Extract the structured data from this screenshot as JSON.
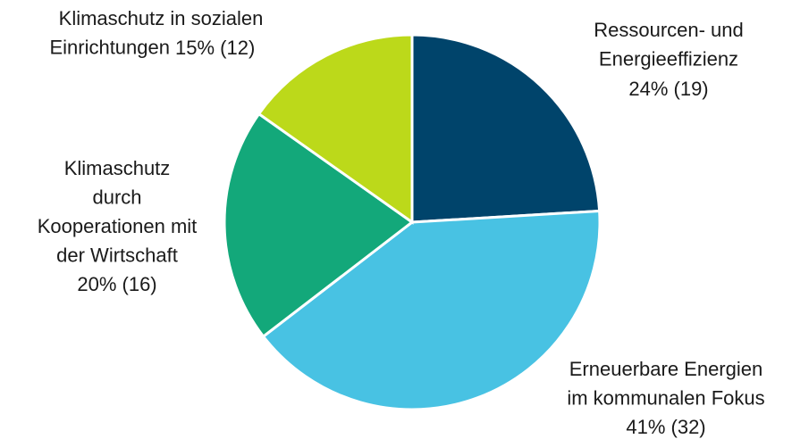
{
  "chart_data": {
    "type": "pie",
    "categories": [
      "Ressourcen- und\nEnergieeffizienz",
      "Erneuerbare Energien\nim kommunalen Fokus",
      "Klimaschutz\ndurch\nKooperationen mit\nder Wirtschaft",
      "Klimaschutz in sozialen\nEinrichtungen"
    ],
    "values": [
      19,
      32,
      16,
      12
    ],
    "value_labels": [
      "24% (19)",
      "41% (32)",
      "20% (16)",
      "15% (12)"
    ],
    "colors": [
      "#00446b",
      "#48c2e3",
      "#13a87a",
      "#bcd91a"
    ]
  }
}
